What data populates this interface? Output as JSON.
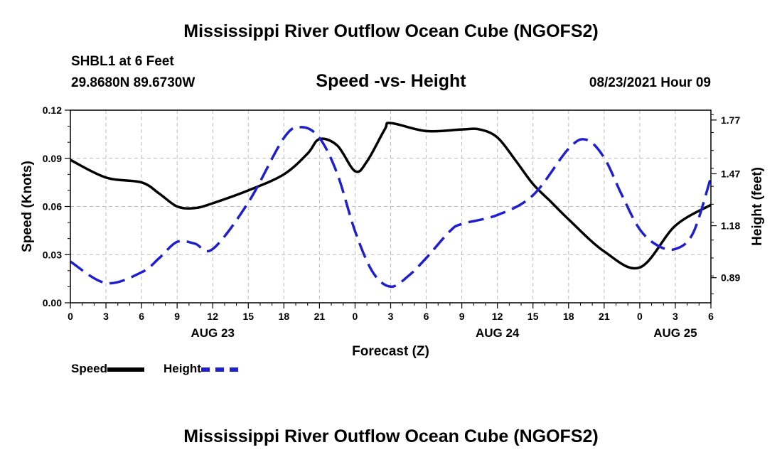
{
  "header": {
    "title": "Mississippi River Outflow Ocean Cube (NGOFS2)",
    "station": "SHBL1 at 6 Feet",
    "coords": "29.8680N  89.6730W",
    "subtitle": "Speed -vs- Height",
    "date": "08/23/2021 Hour 09"
  },
  "footer": {
    "title": "Mississippi River Outflow Ocean Cube (NGOFS2)"
  },
  "legend": {
    "speed_label": "Speed",
    "height_label": "Height"
  },
  "colors": {
    "speed": "#000000",
    "height": "#1f1fcf",
    "grid": "#bbbbbb"
  },
  "chart_data": {
    "type": "line",
    "title": "Speed -vs- Height",
    "xlabel": "Forecast (Z)",
    "ylabel": "Speed (Knots)",
    "y2label": "Height (feet)",
    "xlim": [
      0,
      54
    ],
    "ylim": [
      0,
      0.12
    ],
    "y2lim": [
      0.75,
      1.825
    ],
    "x_ticks": [
      0,
      3,
      6,
      9,
      12,
      15,
      18,
      21,
      24,
      27,
      30,
      33,
      36,
      39,
      42,
      45,
      48,
      51,
      54
    ],
    "x_tick_labels": [
      "0",
      "3",
      "6",
      "9",
      "12",
      "15",
      "18",
      "21",
      "0",
      "3",
      "6",
      "9",
      "12",
      "15",
      "18",
      "21",
      "0",
      "3",
      "6"
    ],
    "day_labels": [
      {
        "x": 12,
        "label": "AUG 23"
      },
      {
        "x": 36,
        "label": "AUG 24"
      },
      {
        "x": 51,
        "label": "AUG 25"
      }
    ],
    "y_ticks": [
      0,
      0.03,
      0.06,
      0.09,
      0.12
    ],
    "y_tick_labels": [
      "0.00",
      "0.03",
      "0.06",
      "0.09",
      "0.12"
    ],
    "y2_ticks": [
      0.89,
      1.18,
      1.47,
      1.77
    ],
    "y2_tick_labels": [
      "0.89",
      "1.18",
      "1.47",
      "1.77"
    ],
    "series": [
      {
        "name": "Speed",
        "axis": "left",
        "style": "solid",
        "x": [
          0,
          3,
          6,
          7.5,
          9,
          10.5,
          12,
          15,
          18,
          20,
          21,
          22.5,
          24,
          25,
          26.5,
          27,
          30,
          33,
          34.5,
          36,
          37.5,
          39,
          40.5,
          42,
          45,
          48,
          51,
          54
        ],
        "y": [
          0.089,
          0.078,
          0.075,
          0.068,
          0.06,
          0.059,
          0.062,
          0.07,
          0.08,
          0.093,
          0.102,
          0.098,
          0.082,
          0.088,
          0.108,
          0.112,
          0.107,
          0.108,
          0.108,
          0.103,
          0.089,
          0.074,
          0.063,
          0.052,
          0.032,
          0.022,
          0.048,
          0.061
        ]
      },
      {
        "name": "Height",
        "axis": "right",
        "style": "dashed",
        "x": [
          0,
          3,
          6,
          7.5,
          9,
          10.5,
          12,
          15,
          18,
          19.5,
          21,
          22.5,
          24,
          25.5,
          27,
          28.5,
          30,
          32,
          33,
          36,
          39,
          42,
          43.5,
          45,
          46.5,
          48,
          49.5,
          51,
          52.5,
          54
        ],
        "y": [
          0.98,
          0.86,
          0.92,
          1.0,
          1.09,
          1.08,
          1.05,
          1.31,
          1.67,
          1.73,
          1.67,
          1.47,
          1.15,
          0.92,
          0.84,
          0.9,
          1.0,
          1.15,
          1.19,
          1.24,
          1.35,
          1.61,
          1.66,
          1.56,
          1.35,
          1.16,
          1.07,
          1.05,
          1.14,
          1.45
        ]
      }
    ]
  }
}
